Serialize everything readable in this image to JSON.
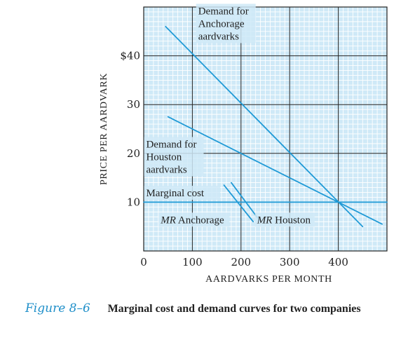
{
  "chart_data": {
    "type": "line",
    "xlabel": "AARDVARKS PER MONTH",
    "ylabel": "PRICE PER AARDVARK",
    "xlim": [
      0,
      500
    ],
    "ylim": [
      0,
      50
    ],
    "x_ticks": [
      {
        "value": 0,
        "label": "0"
      },
      {
        "value": 100,
        "label": "100"
      },
      {
        "value": 200,
        "label": "200"
      },
      {
        "value": 300,
        "label": "300"
      },
      {
        "value": 400,
        "label": "400"
      }
    ],
    "y_ticks": [
      {
        "value": 10,
        "label": "10"
      },
      {
        "value": 20,
        "label": "20"
      },
      {
        "value": 30,
        "label": "30"
      },
      {
        "value": 40,
        "label": "$40"
      }
    ],
    "grid": true,
    "series": [
      {
        "name": "Demand for Anchorage aardvarks",
        "points": [
          [
            45,
            46
          ],
          [
            450,
            5
          ]
        ]
      },
      {
        "name": "Demand for Houston aardvarks",
        "points": [
          [
            50,
            27.5
          ],
          [
            490,
            5.5
          ]
        ]
      },
      {
        "name": "Marginal cost",
        "points": [
          [
            0,
            10
          ],
          [
            500,
            10
          ]
        ]
      },
      {
        "name": "MR Anchorage",
        "points": [
          [
            165,
            13.5
          ],
          [
            225,
            6
          ]
        ]
      },
      {
        "name": "MR Houston",
        "points": [
          [
            180,
            14
          ],
          [
            240,
            6
          ]
        ]
      }
    ],
    "annotations": [
      {
        "id": "anchorage-demand",
        "lines": [
          "Demand for",
          "Anchorage",
          "aardvarks"
        ],
        "x": 112,
        "y": 48.5
      },
      {
        "id": "houston-demand",
        "lines": [
          "Demand for",
          "Houston",
          "aardvarks"
        ],
        "x": 5,
        "y": 21.2
      },
      {
        "id": "marginal-cost",
        "lines": [
          "Marginal cost"
        ],
        "x": 5,
        "y": 11.2
      },
      {
        "id": "mr-anchorage",
        "lines": [
          "MR Anchorage"
        ],
        "x": 35,
        "y": 5.7,
        "italic_prefix": "MR"
      },
      {
        "id": "mr-houston",
        "lines": [
          "MR Houston"
        ],
        "x": 233,
        "y": 5.7,
        "italic_prefix": "MR"
      }
    ]
  },
  "caption": {
    "figure_label": "Figure 8–6",
    "title": "Marginal cost and demand curves for two companies"
  },
  "colors": {
    "plot_background": "#cfe9f7",
    "grid": "#ffffff",
    "line": "#1f9ad6",
    "axis": "#222222",
    "text": "#222222",
    "figure_label": "#1f8fc9"
  }
}
